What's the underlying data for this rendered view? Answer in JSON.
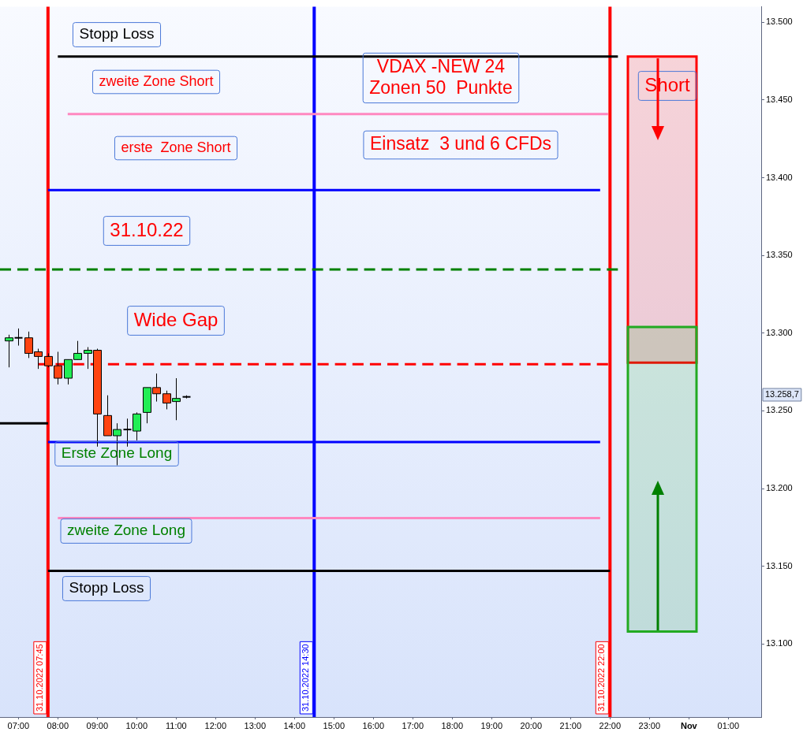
{
  "chart_data": {
    "type": "candlestick",
    "x": [
      "2022-10-31T06:45",
      "2022-10-31T07:00",
      "2022-10-31T07:15",
      "2022-10-31T07:30",
      "2022-10-31T07:45",
      "2022-10-31T08:00",
      "2022-10-31T08:15",
      "2022-10-31T08:30",
      "2022-10-31T08:45",
      "2022-10-31T09:00",
      "2022-10-31T09:15",
      "2022-10-31T09:30",
      "2022-10-31T09:45",
      "2022-10-31T10:00",
      "2022-10-31T10:15",
      "2022-10-31T10:30",
      "2022-10-31T10:45",
      "2022-10-31T11:00",
      "2022-10-31T11:15"
    ],
    "ohlc": [
      [
        13295,
        13299,
        13278,
        13297
      ],
      [
        13297,
        13303,
        13292,
        13297
      ],
      [
        13297,
        13301,
        13284,
        13287
      ],
      [
        13288,
        13290,
        13277,
        13285
      ],
      [
        13285,
        13287,
        13278,
        13279
      ],
      [
        13279,
        13288,
        13267,
        13271
      ],
      [
        13271,
        13283,
        13267,
        13283
      ],
      [
        13283,
        13295,
        13283,
        13287
      ],
      [
        13287,
        13291,
        13277,
        13289
      ],
      [
        13289,
        13290,
        13227,
        13248
      ],
      [
        13247,
        13260,
        13234,
        13234
      ],
      [
        13234,
        13242,
        13215,
        13238
      ],
      [
        13238,
        13245,
        13227,
        13238
      ],
      [
        13237,
        13249,
        13231,
        13248
      ],
      [
        13249,
        13265,
        13242,
        13265
      ],
      [
        13265,
        13274,
        13256,
        13261
      ],
      [
        13261,
        13263,
        13251,
        13255
      ],
      [
        13256,
        13271,
        13244,
        13258
      ],
      [
        13259,
        13260,
        13258,
        13259
      ]
    ],
    "series": [
      {
        "type": "line",
        "x": [
          "2022-10-31T08:00",
          "2022-10-31T22:12"
        ],
        "values": [
          13478,
          13478
        ],
        "color": "#000000"
      },
      {
        "type": "line",
        "x": [
          "2022-10-31T08:15",
          "2022-10-31T21:57"
        ],
        "values": [
          13441,
          13441
        ],
        "color": "#ff88c0"
      },
      {
        "type": "line",
        "x": [
          "2022-10-31T07:45",
          "2022-10-31T21:45"
        ],
        "values": [
          13392,
          13392
        ],
        "color": "#0000ff"
      },
      {
        "type": "line",
        "x": [
          "2022-10-31T06:32",
          "2022-10-31T22:12"
        ],
        "values": [
          13341,
          13341
        ],
        "color": "#008000",
        "line_style": "dashed"
      },
      {
        "type": "line",
        "x": [
          "2022-10-31T07:30",
          "2022-10-31T21:57"
        ],
        "values": [
          13280,
          13280
        ],
        "color": "#ff0000",
        "line_style": "dashed"
      },
      {
        "type": "line",
        "x": [
          "2022-10-31T07:45",
          "2022-10-31T21:45"
        ],
        "values": [
          13230,
          13230
        ],
        "color": "#0000ff"
      },
      {
        "type": "line",
        "x": [
          "2022-10-31T08:00",
          "2022-10-31T21:45"
        ],
        "values": [
          13181,
          13181
        ],
        "color": "#ff88c0"
      },
      {
        "type": "line",
        "x": [
          "2022-10-31T07:45",
          "2022-10-31T22:00"
        ],
        "values": [
          13147,
          13147
        ],
        "color": "#000000"
      },
      {
        "type": "line",
        "x": [
          "2022-10-31T06:32",
          "2022-10-31T07:45"
        ],
        "values": [
          13242,
          13242
        ],
        "color": "#000000"
      }
    ],
    "xlim": [
      "2022-10-31T06:32",
      "2022-11-01T01:50"
    ],
    "xticks": [
      {
        "value": "2022-10-31T07:00",
        "label": "07:00"
      },
      {
        "value": "2022-10-31T08:00",
        "label": "08:00"
      },
      {
        "value": "2022-10-31T09:00",
        "label": "09:00"
      },
      {
        "value": "2022-10-31T10:00",
        "label": "10:00"
      },
      {
        "value": "2022-10-31T11:00",
        "label": "11:00"
      },
      {
        "value": "2022-10-31T12:00",
        "label": "12:00"
      },
      {
        "value": "2022-10-31T13:00",
        "label": "13:00"
      },
      {
        "value": "2022-10-31T14:00",
        "label": "14:00"
      },
      {
        "value": "2022-10-31T15:00",
        "label": "15:00"
      },
      {
        "value": "2022-10-31T16:00",
        "label": "16:00"
      },
      {
        "value": "2022-10-31T17:00",
        "label": "17:00"
      },
      {
        "value": "2022-10-31T18:00",
        "label": "18:00"
      },
      {
        "value": "2022-10-31T19:00",
        "label": "19:00"
      },
      {
        "value": "2022-10-31T20:00",
        "label": "20:00"
      },
      {
        "value": "2022-10-31T21:00",
        "label": "21:00"
      },
      {
        "value": "2022-10-31T22:00",
        "label": "22:00"
      },
      {
        "value": "2022-10-31T23:00",
        "label": "23:00"
      },
      {
        "value": "2022-11-01T00:00",
        "label": "Nov"
      },
      {
        "value": "2022-11-01T01:00",
        "label": "01:00"
      }
    ],
    "ylim": [
      13053,
      13510
    ],
    "yticks": [
      {
        "value": 13100,
        "label": "13.100"
      },
      {
        "value": 13150,
        "label": "13.150"
      },
      {
        "value": 13200,
        "label": "13.200"
      },
      {
        "value": 13250,
        "label": "13.250"
      },
      {
        "value": 13300,
        "label": "13.300"
      },
      {
        "value": 13350,
        "label": "13.350"
      },
      {
        "value": 13400,
        "label": "13.400"
      },
      {
        "value": 13450,
        "label": "13.450"
      },
      {
        "value": 13500,
        "label": "13.500"
      }
    ],
    "ref_lines": [
      {
        "axis": "x",
        "value": "2022-10-31T07:45",
        "label": "31.10.2022 07:45",
        "color": "#ff0000"
      },
      {
        "axis": "x",
        "value": "2022-10-31T14:30",
        "label": "31.10.2022 14:30",
        "color": "#0000ff"
      },
      {
        "axis": "x",
        "value": "2022-10-31T22:00",
        "label": "31.10.2022 22:00",
        "color": "#ff0000"
      }
    ],
    "bands": [
      {
        "axis": "y",
        "from": 13281,
        "to": 13478,
        "color": "#ff0000"
      },
      {
        "axis": "y",
        "from": 13108,
        "to": 13304,
        "color": "#22aa22"
      }
    ],
    "annotations": [
      "Stopp Loss",
      "zweite Zone Short",
      "erste  Zone Short",
      "31.10.22",
      "Wide Gap",
      "Erste Zone Long",
      "zweite Zone Long",
      "Stopp Loss",
      "VDAX -NEW 24\nZonen 50  Punkte",
      "Einsatz  3 und 6 CFDs",
      "Short",
      "13.258,7"
    ],
    "legend": false
  }
}
